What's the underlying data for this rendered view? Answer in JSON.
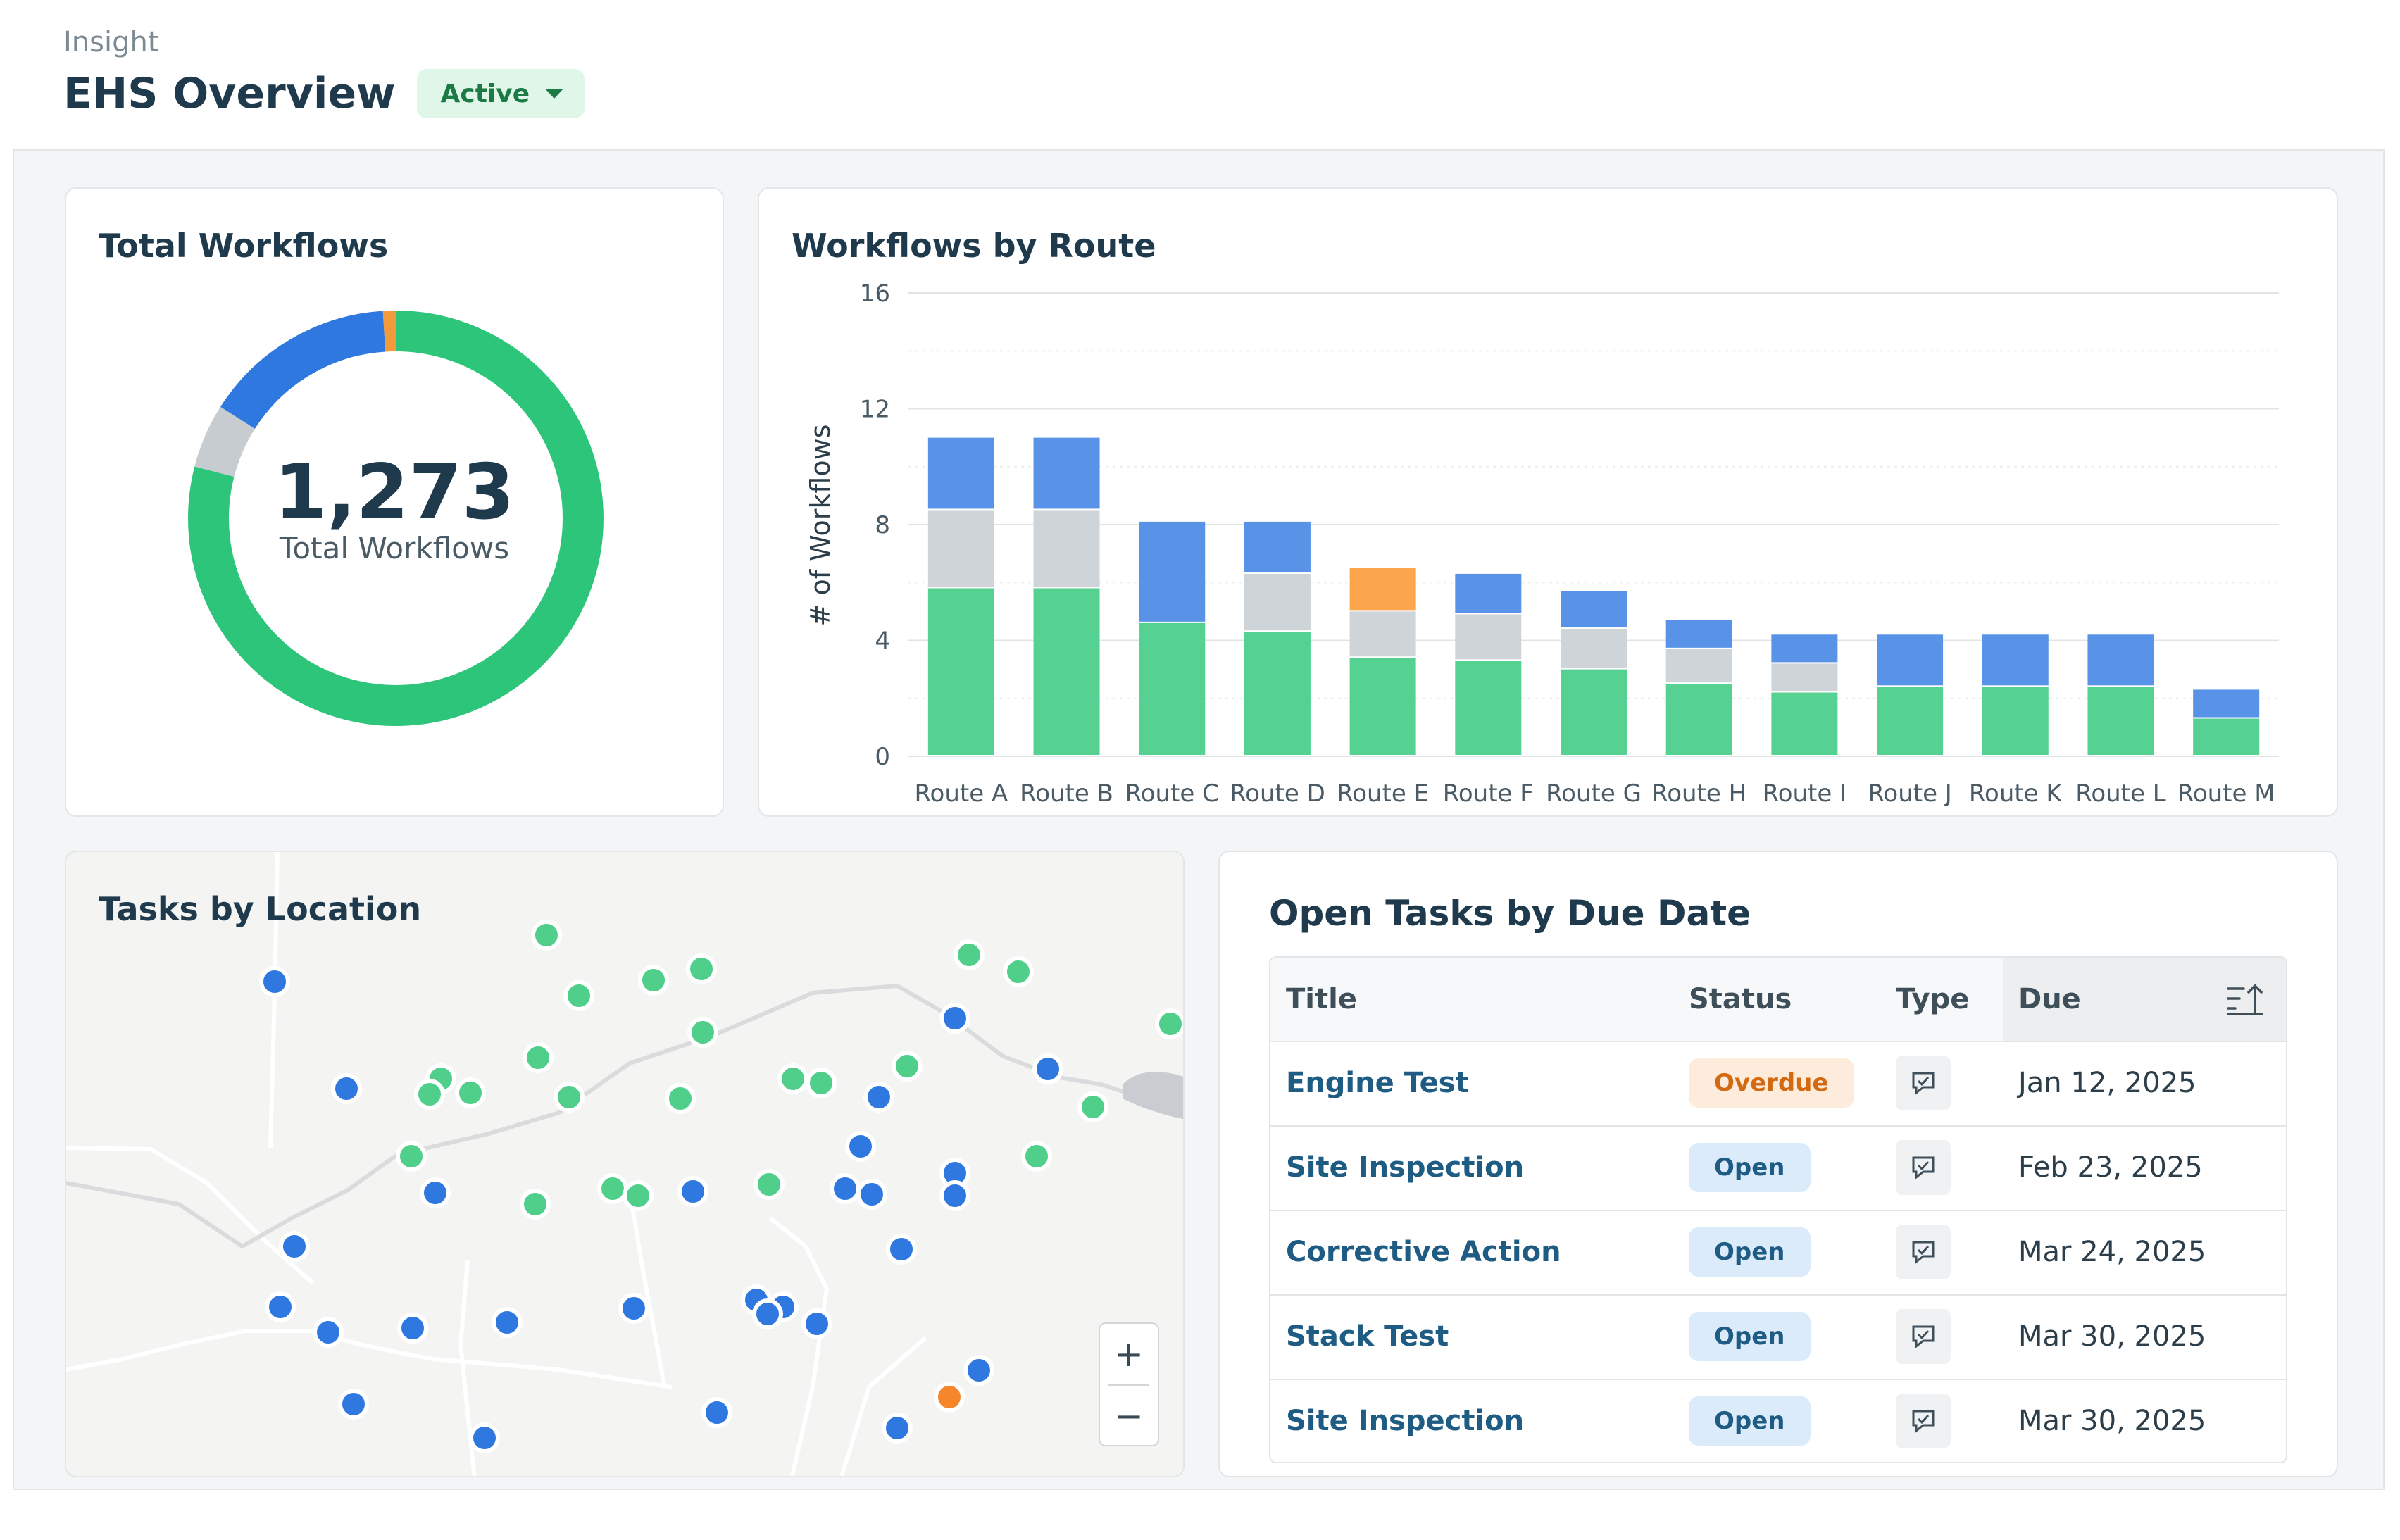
{
  "header": {
    "breadcrumb": "Insight",
    "title": "EHS Overview",
    "status": "Active"
  },
  "total_workflows": {
    "title": "Total Workflows",
    "total": "1,273",
    "total_label": "Total Workflows",
    "colors": {
      "green": "#2cc57a",
      "gray": "#c7ccd1",
      "blue": "#2f78e0",
      "orange": "#f39a3d"
    }
  },
  "workflows_by_route": {
    "title": "Workflows by Route",
    "ylabel": "# of Workflows"
  },
  "chart_data": {
    "type": "bar",
    "stacked": true,
    "categories": [
      "Route A",
      "Route B",
      "Route C",
      "Route D",
      "Route E",
      "Route F",
      "Route G",
      "Route H",
      "Route I",
      "Route J",
      "Route K",
      "Route L",
      "Route M"
    ],
    "series": [
      {
        "values": [
          5.8,
          5.8,
          4.6,
          4.3,
          3.4,
          3.3,
          3.0,
          2.5,
          2.2,
          2.4,
          2.4,
          2.4,
          1.3
        ],
        "color": "#55d291"
      },
      {
        "values": [
          2.7,
          2.7,
          0,
          2.0,
          1.6,
          1.6,
          1.4,
          1.2,
          1.0,
          0,
          0,
          0,
          0
        ],
        "color": "#cfd4d8"
      },
      {
        "values": [
          0,
          0,
          0,
          0,
          1.5,
          0,
          0,
          0,
          0,
          0,
          0,
          0,
          0
        ],
        "color": "#fba64c"
      },
      {
        "values": [
          2.5,
          2.5,
          3.5,
          1.8,
          0,
          1.4,
          1.3,
          1.0,
          1.0,
          1.8,
          1.8,
          1.8,
          1.0
        ],
        "color": "#5893e8"
      }
    ],
    "yticks": [
      0,
      4,
      8,
      12,
      16
    ],
    "ylim": [
      0,
      16
    ],
    "ylabel": "# of Workflows",
    "grid": true
  },
  "tasks_by_location": {
    "title": "Tasks by Location",
    "zoom_in": "+",
    "zoom_out": "−",
    "marker_colors": {
      "green": "#4fcf8a",
      "blue": "#2f78e0",
      "orange": "#f5872a"
    }
  },
  "open_tasks": {
    "title": "Open Tasks by Due Date",
    "columns": {
      "title": "Title",
      "status": "Status",
      "type": "Type",
      "due": "Due"
    },
    "rows": [
      {
        "title": "Engine Test",
        "status": "Overdue",
        "status_kind": "overdue",
        "type_icon": "checklist-icon",
        "due": "Jan 12, 2025"
      },
      {
        "title": "Site Inspection",
        "status": "Open",
        "status_kind": "open",
        "type_icon": "checklist-icon",
        "due": "Feb 23, 2025"
      },
      {
        "title": "Corrective Action",
        "status": "Open",
        "status_kind": "open",
        "type_icon": "checklist-icon",
        "due": "Mar 24, 2025"
      },
      {
        "title": "Stack Test",
        "status": "Open",
        "status_kind": "open",
        "type_icon": "checklist-icon",
        "due": "Mar 30, 2025"
      },
      {
        "title": "Site Inspection",
        "status": "Open",
        "status_kind": "open",
        "type_icon": "checklist-icon",
        "due": "Mar 30, 2025"
      }
    ]
  }
}
